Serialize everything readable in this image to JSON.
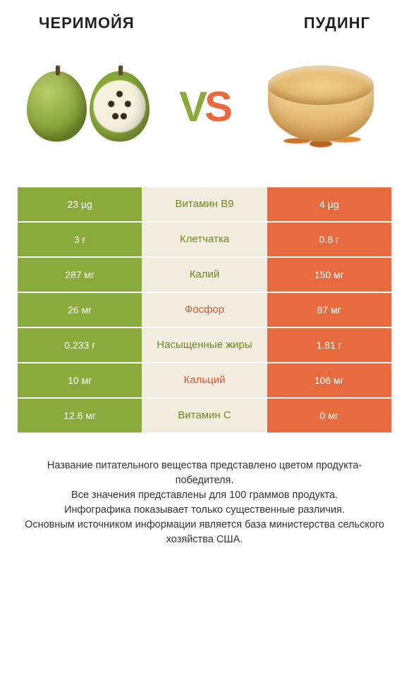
{
  "titles": {
    "left": "ЧЕРИМОЙЯ",
    "right": "ПУДИНГ"
  },
  "vs": {
    "v": "V",
    "s": "S"
  },
  "colors": {
    "left": "#8aab3b",
    "right": "#e86a3f",
    "mid_bg": "#f2eddf",
    "winner_left_text": "#6a8a1f",
    "winner_right_text": "#d85a32"
  },
  "rows": [
    {
      "left": "23 µg",
      "label": "Витамин B9",
      "right": "4 µg",
      "winner": "left"
    },
    {
      "left": "3 г",
      "label": "Клетчатка",
      "right": "0.8 г",
      "winner": "left"
    },
    {
      "left": "287 мг",
      "label": "Калий",
      "right": "150 мг",
      "winner": "left"
    },
    {
      "left": "26 мг",
      "label": "Фосфор",
      "right": "87 мг",
      "winner": "right"
    },
    {
      "left": "0.233 г",
      "label": "Насыщенные жиры",
      "right": "1.81 г",
      "winner": "left"
    },
    {
      "left": "10 мг",
      "label": "Кальций",
      "right": "106 мг",
      "winner": "right"
    },
    {
      "left": "12.6 мг",
      "label": "Витамин C",
      "right": "0 мг",
      "winner": "left"
    }
  ],
  "footer": {
    "l1": "Название питательного вещества представлено цветом продукта-победителя.",
    "l2": "Все значения представлены для 100 граммов продукта.",
    "l3": "Инфографика показывает только существенные различия.",
    "l4": "Основным источником информации является база министерства сельского хозяйства США."
  },
  "typography": {
    "title_fontsize": 22,
    "vs_fontsize": 60,
    "cell_fontsize": 14,
    "label_fontsize": 15,
    "footer_fontsize": 14.5
  }
}
